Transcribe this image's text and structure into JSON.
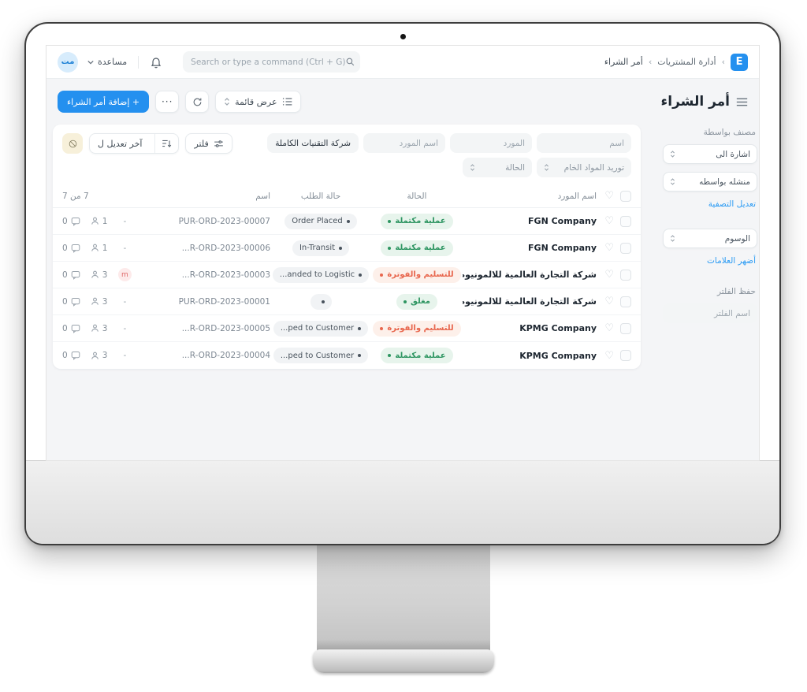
{
  "navbar": {
    "logo_letter": "E",
    "breadcrumb": {
      "separator": "‹",
      "items": [
        "أدارة المشتريات",
        "أمر الشراء"
      ]
    },
    "search": {
      "placeholder": "Search or type a command (Ctrl + G)"
    },
    "help_label": "مساعدة",
    "avatar_initials": "مت"
  },
  "page": {
    "title": "أمر الشراء",
    "toolbar": {
      "view_label": "عرض قائمة",
      "more_label": "···",
      "add_label": "+ إضافة أمر الشراء"
    }
  },
  "filters": {
    "name_placeholder": "اسم",
    "supplier_placeholder": "المورد",
    "supplier_name_placeholder": "اسم المورد",
    "supplier_name_value": "شركة التقنيات الكاملة",
    "material_request_value": "توريد المواد الخام",
    "status_placeholder": "الحالة",
    "filter_button_label": "فلتر",
    "sort_button_label": "آخر تعديل ل"
  },
  "table": {
    "headers": {
      "supplier": "اسم المورد",
      "status": "الحالة",
      "order_status": "حالة الطلب",
      "name": "اسم",
      "count": "7 من 7"
    },
    "rows": [
      {
        "supplier": "FGN Company",
        "status": "عملية مكتملة",
        "status_type": "green",
        "order_status": "Order Placed",
        "id": "PUR-ORD-2023-00007",
        "avatar": "",
        "assign_count": "1",
        "comment_count": "0"
      },
      {
        "supplier": "FGN Company",
        "status": "عملية مكتملة",
        "status_type": "green",
        "order_status": "In-Transit",
        "id": "...R-ORD-2023-00006",
        "avatar": "",
        "assign_count": "1",
        "comment_count": "0"
      },
      {
        "supplier": "شركة التجارة العالمية للالمونيوم",
        "status": "للتسليم والفوترة",
        "status_type": "orange",
        "order_status": "...anded to Logistic",
        "id": "...R-ORD-2023-00003",
        "avatar": "m",
        "assign_count": "3",
        "comment_count": "0"
      },
      {
        "supplier": "شركة التجارة العالمية للالمونيوم",
        "status": "مغلق",
        "status_type": "green",
        "order_status": "",
        "id": "PUR-ORD-2023-00001",
        "avatar": "",
        "assign_count": "3",
        "comment_count": "0"
      },
      {
        "supplier": "KPMG Company",
        "status": "للتسليم والفوترة",
        "status_type": "orange",
        "order_status": "...ped to Customer",
        "id": "...R-ORD-2023-00005",
        "avatar": "",
        "assign_count": "3",
        "comment_count": "0"
      },
      {
        "supplier": "KPMG Company",
        "status": "عملية مكتملة",
        "status_type": "green",
        "order_status": "...ped to Customer",
        "id": "...R-ORD-2023-00004",
        "avatar": "",
        "assign_count": "3",
        "comment_count": "0"
      }
    ]
  },
  "sidebar": {
    "filter_by_label": "مصنف بواسطة",
    "assigned_to": "اشارة الى",
    "created_by": "منشله بواسطه",
    "edit_filters_link": "تعديل التصفية",
    "tags": "الوسوم",
    "show_tags_link": "أضهر العلامات",
    "save_filter_label": "حفظ الفلتر",
    "filter_name_placeholder": "اسم الفلتر"
  },
  "colors": {
    "accent_blue": "#2490ef",
    "status_green": "#2d9561",
    "status_green_bg": "#e7f4ec",
    "status_orange": "#e8664d",
    "status_orange_bg": "#fdf0ea",
    "chip_gray_bg": "#f1f3f5",
    "ban_button_bg": "#f7f0da",
    "page_bg": "#f4f5f7"
  }
}
